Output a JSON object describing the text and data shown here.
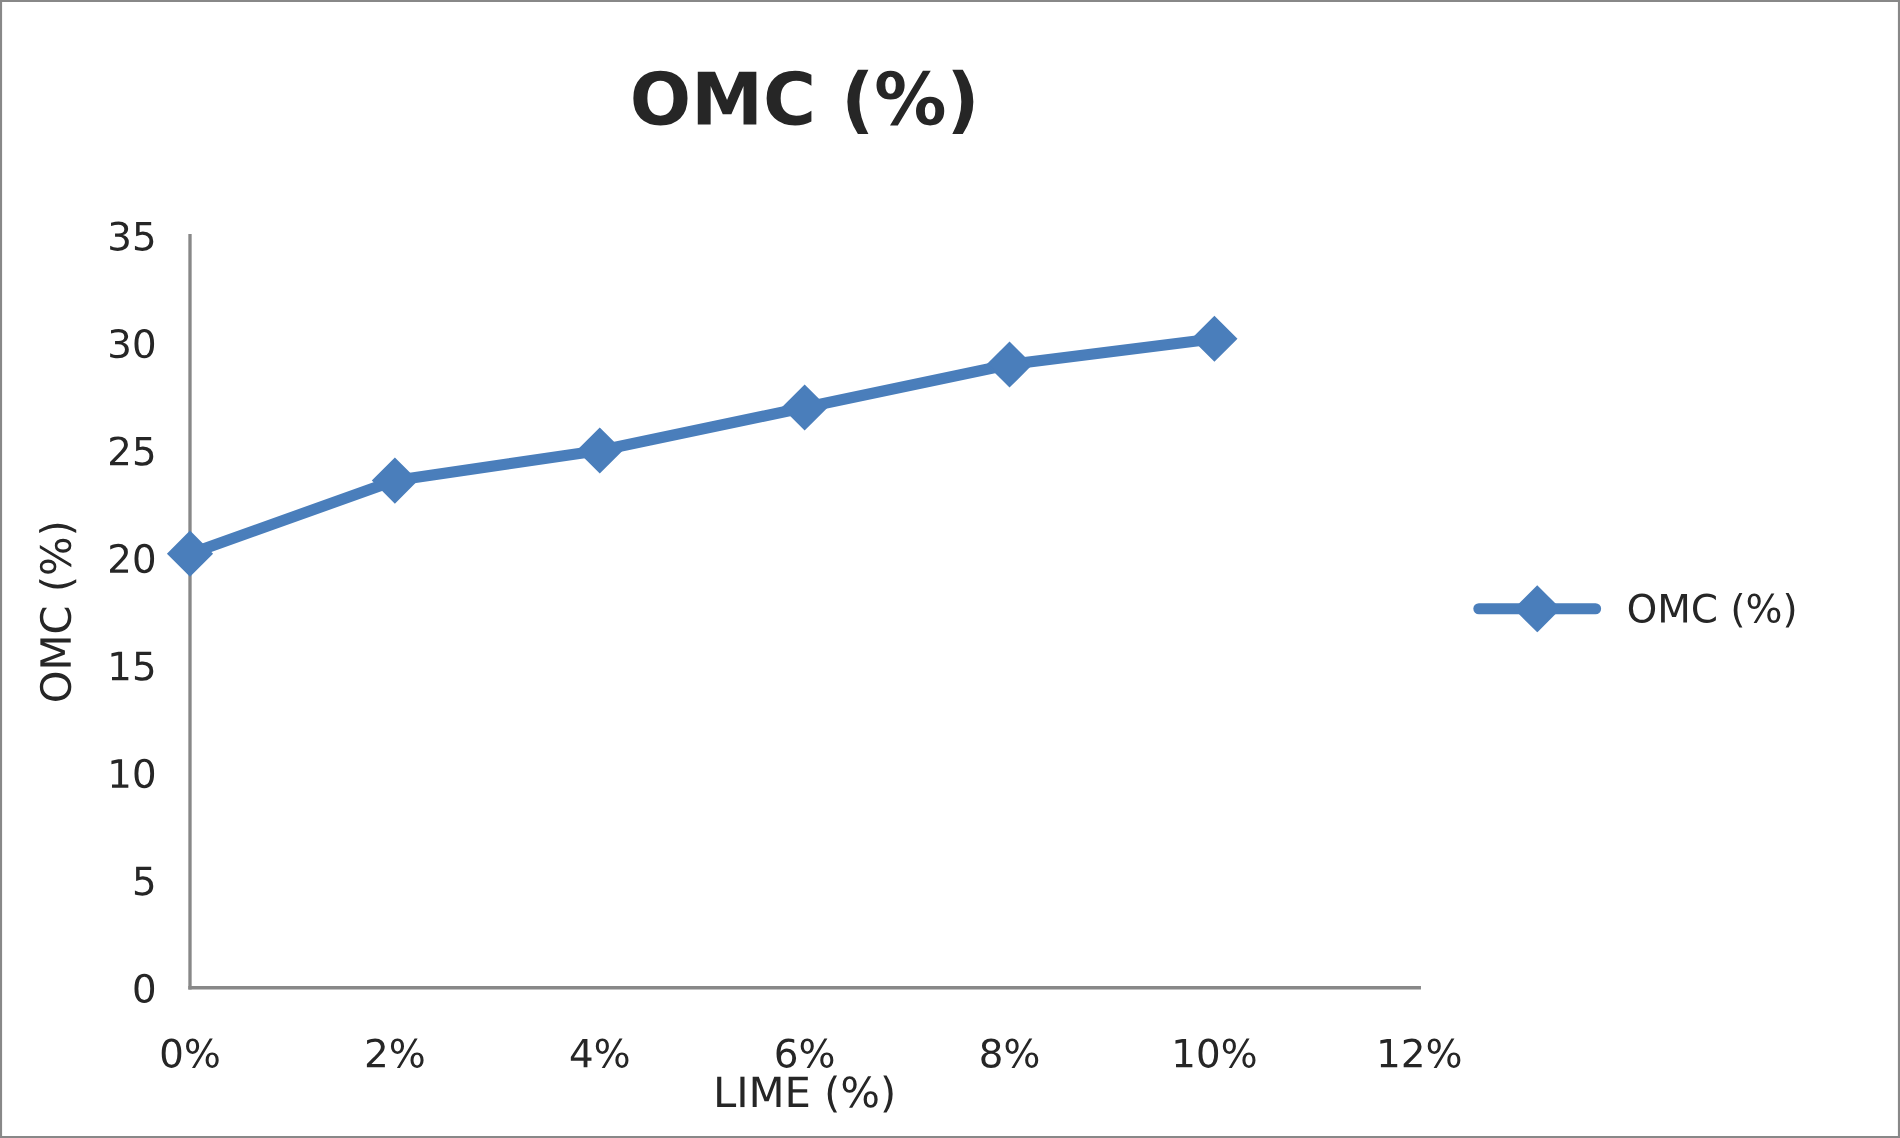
{
  "chart_data": {
    "type": "line",
    "title": "OMC (%)",
    "xlabel": "LIME (%)",
    "ylabel": "OMC (%)",
    "x": [
      0,
      2,
      4,
      6,
      8,
      10
    ],
    "series": [
      {
        "name": "OMC (%)",
        "color": "#4a7ebb",
        "values": [
          20.2,
          23.6,
          25.0,
          27.0,
          29.0,
          30.2
        ]
      }
    ],
    "xlim": [
      0,
      12
    ],
    "xticks": [
      {
        "value": 0,
        "label": "0%"
      },
      {
        "value": 2,
        "label": "2%"
      },
      {
        "value": 4,
        "label": "4%"
      },
      {
        "value": 6,
        "label": "6%"
      },
      {
        "value": 8,
        "label": "8%"
      },
      {
        "value": 10,
        "label": "10%"
      },
      {
        "value": 12,
        "label": "12%"
      }
    ],
    "ylim": [
      0,
      35
    ],
    "yticks": [
      0,
      5,
      10,
      15,
      20,
      25,
      30,
      35
    ],
    "grid": false,
    "legend": "right",
    "marker": "diamond",
    "line_style": "solid"
  }
}
